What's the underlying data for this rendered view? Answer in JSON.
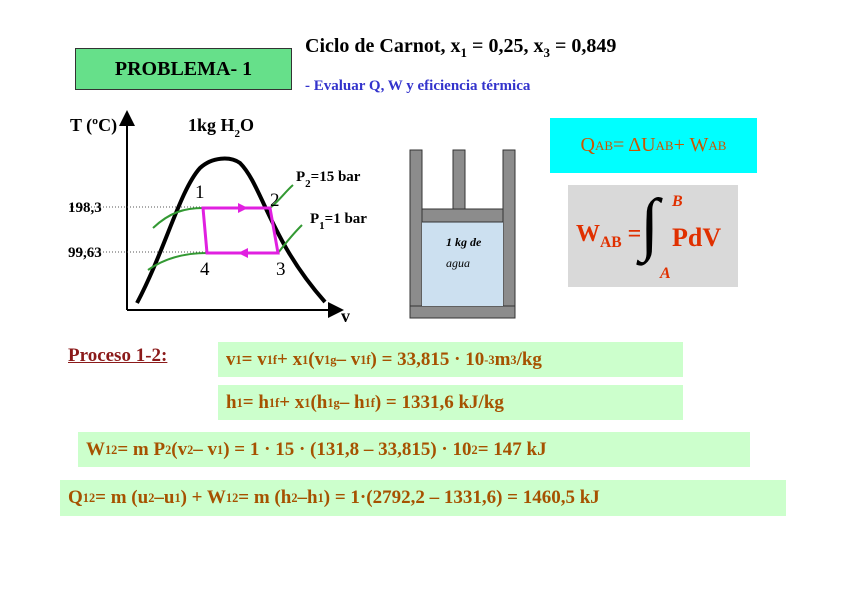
{
  "title_box": "PROBLEMA- 1",
  "heading": [
    "Ciclo de Carnot, x",
    {
      "sub": "1"
    },
    " = 0,25, x",
    {
      "sub": "3"
    },
    " = 0,849"
  ],
  "subheading": "- Evaluar Q, W y eficiencia térmica",
  "diagram": {
    "y_axis_label": "T (ºC)",
    "x_axis_label": "v",
    "mass_label": [
      "1kg H",
      {
        "sub": "2"
      },
      "O"
    ],
    "t_high": "198,3",
    "t_low": "99,63",
    "points": [
      "1",
      "2",
      "3",
      "4"
    ],
    "p2": [
      "P",
      {
        "sub": "2"
      },
      "=15 bar"
    ],
    "p1": [
      "P",
      {
        "sub": "1"
      },
      "=1 bar"
    ]
  },
  "piston": {
    "line1": "1 kg de",
    "line2": "agua"
  },
  "q_ab": [
    "Q",
    {
      "sub": "AB"
    },
    " = ΔU",
    {
      "sub": "AB"
    },
    " + W",
    {
      "sub": "AB"
    }
  ],
  "w_ab": {
    "lhs": [
      "W",
      {
        "sub": "AB"
      },
      " ="
    ],
    "sign": "∫",
    "upper": "B",
    "lower": "A",
    "integrand": "PdV"
  },
  "process_label": "Proceso 1-2:",
  "equations": [
    [
      "v",
      {
        "sub": "1"
      },
      " = v",
      {
        "sub": "1f"
      },
      " + x",
      {
        "sub": "1"
      },
      " (v",
      {
        "sub": "1g"
      },
      " – v",
      {
        "sub": "1f"
      },
      ") = 33,815 · 10",
      {
        "sup": "-3"
      },
      " m",
      {
        "sup": "3"
      },
      "/kg"
    ],
    [
      "h",
      {
        "sub": "1"
      },
      " = h",
      {
        "sub": "1f"
      },
      " + x",
      {
        "sub": "1"
      },
      " (h",
      {
        "sub": "1g"
      },
      " – h",
      {
        "sub": "1f"
      },
      ") = 1331,6 kJ/kg"
    ],
    [
      "W",
      {
        "sub": "12"
      },
      " = m P",
      {
        "sub": "2"
      },
      " (v",
      {
        "sub": "2"
      },
      " – v",
      {
        "sub": "1"
      },
      ") = 1 · 15 · (131,8 – 33,815) · 10",
      {
        "sup": "2"
      },
      " = 147 kJ"
    ],
    [
      "Q",
      {
        "sub": "12"
      },
      " = m (u",
      {
        "sub": "2"
      },
      " –u",
      {
        "sub": "1"
      },
      ") + W",
      {
        "sub": "12"
      },
      " = m (h",
      {
        "sub": "2"
      },
      " –h",
      {
        "sub": "1"
      },
      ") = 1·(2792,2 – 1331,6) = 1460,5 kJ"
    ]
  ]
}
